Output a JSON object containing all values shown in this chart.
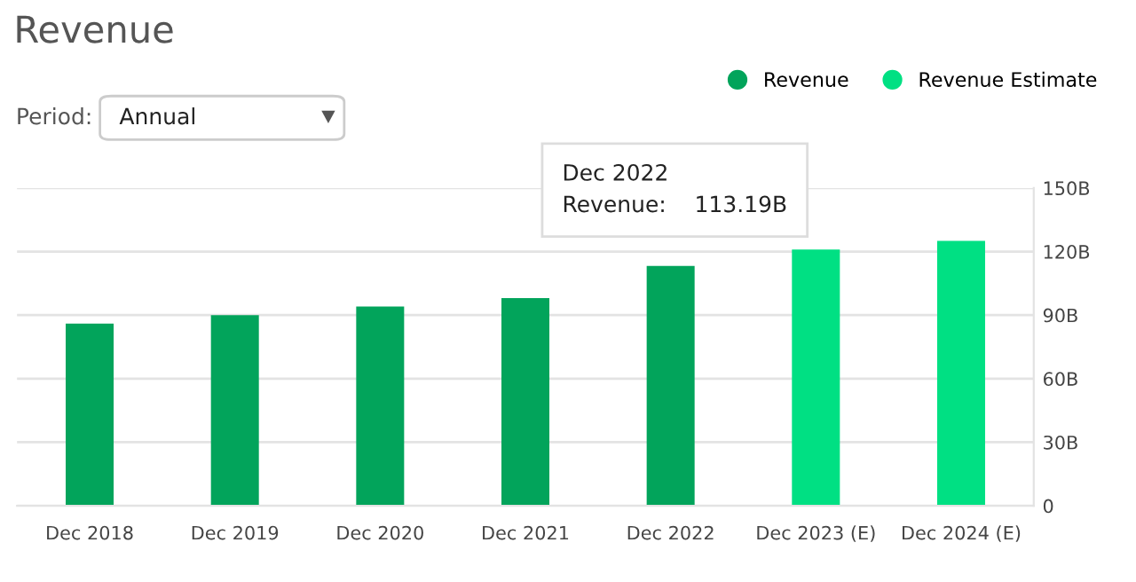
{
  "chart_data": {
    "type": "bar",
    "title": "Revenue",
    "categories": [
      "Dec 2018",
      "Dec 2019",
      "Dec 2020",
      "Dec 2021",
      "Dec 2022",
      "Dec 2023 (E)",
      "Dec 2024 (E)"
    ],
    "series": [
      {
        "name": "Revenue",
        "color": "#02a45b",
        "values": [
          86,
          90,
          94,
          98,
          113.19,
          null,
          null
        ]
      },
      {
        "name": "Revenue Estimate",
        "color": "#00e083",
        "values": [
          null,
          null,
          null,
          null,
          null,
          121,
          125
        ]
      }
    ],
    "ylim": [
      0,
      150
    ],
    "yticks": [
      0,
      {
        "value": 30,
        "label": "30B"
      },
      {
        "value": 60,
        "label": "60B"
      },
      {
        "value": 90,
        "label": "90B"
      },
      {
        "value": 120,
        "label": "120B"
      },
      {
        "value": 150,
        "label": "150B"
      }
    ],
    "grid": "y",
    "legend": "top right",
    "annotations": [
      "Period:",
      "Annual",
      {
        "text": "Dec 2022\nRevenue:    113.19B",
        "x": "Dec 2022",
        "y": 113.19
      }
    ]
  }
}
